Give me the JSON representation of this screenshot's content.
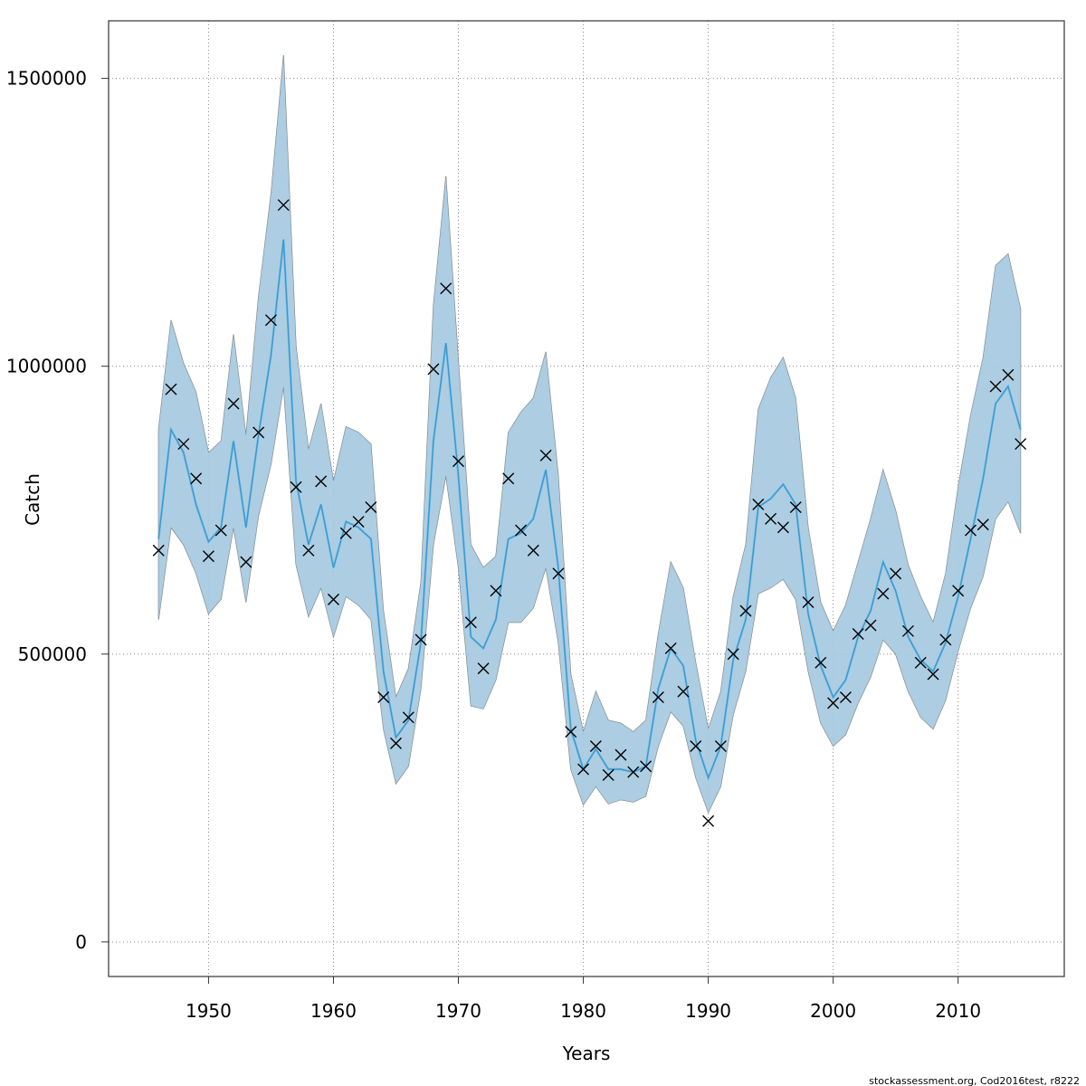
{
  "chart_data": {
    "type": "line",
    "xlabel": "Years",
    "ylabel": "Catch",
    "xlim": [
      1942,
      2018.5
    ],
    "ylim": [
      -60000,
      1600000
    ],
    "x_ticks": [
      1950,
      1960,
      1970,
      1980,
      1990,
      2000,
      2010
    ],
    "x_tick_labels": [
      "1950",
      "1960",
      "1970",
      "1980",
      "1990",
      "2000",
      "2010"
    ],
    "y_ticks": [
      0,
      500000,
      1000000,
      1500000
    ],
    "y_tick_labels": [
      "0",
      "500000",
      "1000000",
      "1500000"
    ],
    "grid": true,
    "colors": {
      "band_outer": "#8a8a8a",
      "band_inner": "#a9cfe8",
      "band_overlap": "#a3c3d6",
      "fit_light": "#55b7ec",
      "fit_dark": "#3a7ca5",
      "observed_marker": "#000000",
      "grid": "#888888"
    },
    "x": [
      1946,
      1947,
      1948,
      1949,
      1950,
      1951,
      1952,
      1953,
      1954,
      1955,
      1956,
      1957,
      1958,
      1959,
      1960,
      1961,
      1962,
      1963,
      1964,
      1965,
      1966,
      1967,
      1968,
      1969,
      1970,
      1971,
      1972,
      1973,
      1974,
      1975,
      1976,
      1977,
      1978,
      1979,
      1980,
      1981,
      1982,
      1983,
      1984,
      1985,
      1986,
      1987,
      1988,
      1989,
      1990,
      1991,
      1992,
      1993,
      1994,
      1995,
      1996,
      1997,
      1998,
      1999,
      2000,
      2001,
      2002,
      2003,
      2004,
      2005,
      2006,
      2007,
      2008,
      2009,
      2010,
      2011,
      2012,
      2013,
      2014,
      2015
    ],
    "series": [
      {
        "values": [
          700000,
          890000,
          850000,
          760000,
          695000,
          720000,
          870000,
          720000,
          880000,
          1020000,
          1220000,
          800000,
          690000,
          760000,
          650000,
          730000,
          720000,
          700000,
          470000,
          355000,
          385000,
          520000,
          870000,
          1040000,
          810000,
          530000,
          510000,
          560000,
          700000,
          710000,
          735000,
          820000,
          650000,
          370000,
          300000,
          335000,
          300000,
          300000,
          295000,
          305000,
          440000,
          510000,
          480000,
          350000,
          285000,
          340000,
          490000,
          560000,
          755000,
          770000,
          795000,
          760000,
          570000,
          480000,
          425000,
          455000,
          530000,
          575000,
          660000,
          610000,
          530000,
          490000,
          470000,
          520000,
          600000,
          700000,
          805000,
          935000,
          965000,
          890000
        ]
      },
      {
        "values": [
          680000,
          960000,
          865000,
          805000,
          670000,
          715000,
          935000,
          660000,
          885000,
          1080000,
          1280000,
          790000,
          680000,
          800000,
          595000,
          710000,
          730000,
          755000,
          425000,
          345000,
          390000,
          525000,
          995000,
          1135000,
          835000,
          555000,
          475000,
          610000,
          805000,
          715000,
          680000,
          845000,
          640000,
          365000,
          300000,
          340000,
          290000,
          325000,
          295000,
          305000,
          425000,
          510000,
          435000,
          340000,
          210000,
          340000,
          500000,
          575000,
          760000,
          735000,
          720000,
          755000,
          590000,
          485000,
          415000,
          425000,
          535000,
          550000,
          605000,
          640000,
          540000,
          485000,
          465000,
          525000,
          610000,
          715000,
          725000,
          965000,
          985000,
          865000
        ]
      }
    ],
    "band_lower": [
      560000,
      720000,
      690000,
      640000,
      570000,
      595000,
      720000,
      590000,
      740000,
      830000,
      965000,
      655000,
      565000,
      615000,
      530000,
      600000,
      585000,
      560000,
      370000,
      275000,
      305000,
      440000,
      690000,
      810000,
      650000,
      410000,
      405000,
      455000,
      555000,
      555000,
      580000,
      650000,
      520000,
      300000,
      238000,
      270000,
      240000,
      247000,
      243000,
      253000,
      340000,
      400000,
      375000,
      285000,
      225000,
      270000,
      395000,
      470000,
      605000,
      615000,
      630000,
      595000,
      470000,
      380000,
      340000,
      360000,
      415000,
      460000,
      525000,
      500000,
      435000,
      390000,
      370000,
      420000,
      505000,
      580000,
      635000,
      735000,
      765000,
      710000
    ],
    "band_upper": [
      890000,
      1080000,
      1005000,
      955000,
      850000,
      870000,
      1055000,
      880000,
      1120000,
      1300000,
      1540000,
      1035000,
      855000,
      935000,
      800000,
      895000,
      885000,
      865000,
      575000,
      425000,
      475000,
      625000,
      1105000,
      1330000,
      1010000,
      690000,
      650000,
      670000,
      885000,
      920000,
      945000,
      1025000,
      810000,
      465000,
      365000,
      435000,
      385000,
      380000,
      365000,
      385000,
      535000,
      660000,
      615000,
      485000,
      370000,
      435000,
      600000,
      690000,
      925000,
      980000,
      1015000,
      945000,
      720000,
      590000,
      540000,
      585000,
      660000,
      735000,
      820000,
      750000,
      655000,
      600000,
      555000,
      640000,
      790000,
      915000,
      1015000,
      1175000,
      1195000,
      1100000
    ]
  },
  "footer": {
    "text": "stockassessment.org, Cod2016test, r8222"
  }
}
